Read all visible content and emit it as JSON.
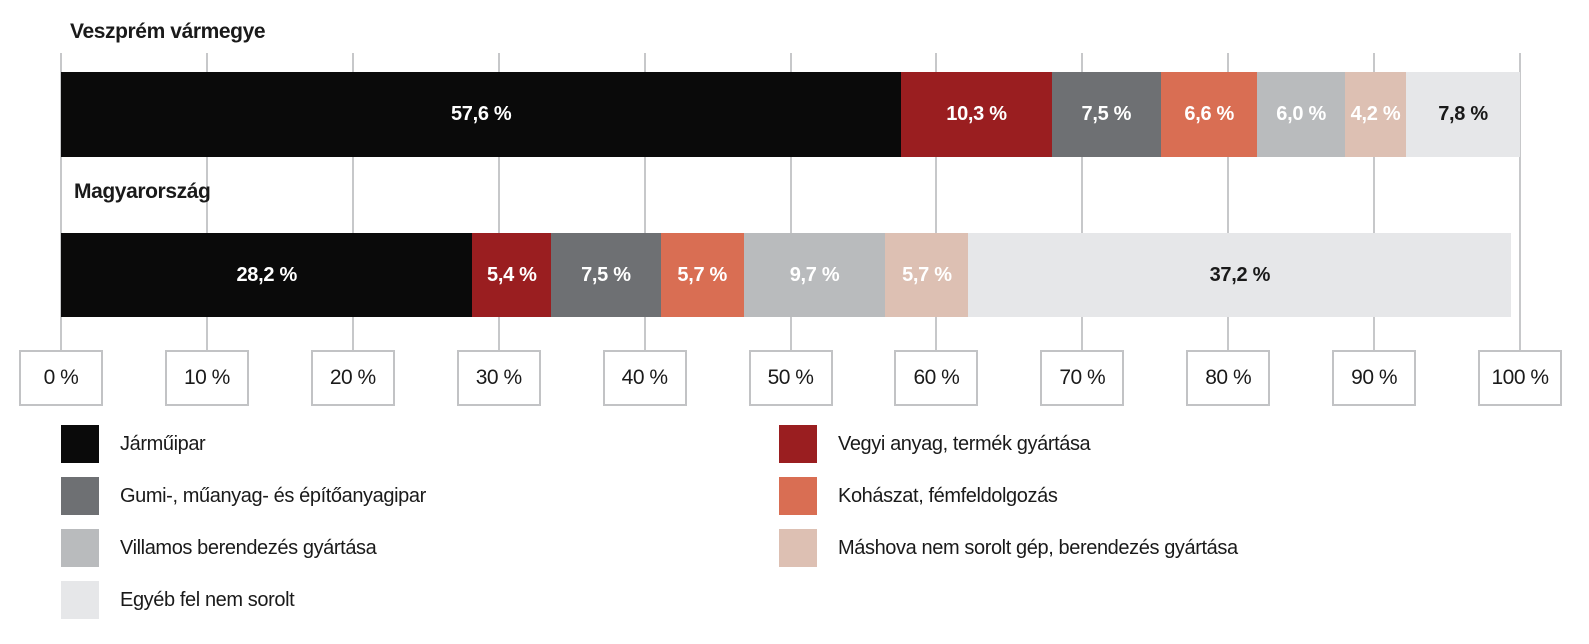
{
  "title": "Veszprém vármegye",
  "chart_data": {
    "type": "bar",
    "variant": "horizontal-stacked-percent",
    "title": "Veszprém vármegye",
    "xlabel": "",
    "ylabel": "",
    "xlim": [
      0,
      100
    ],
    "grid": "vertical-gridlines-on",
    "x_tick_labels": [
      "0 %",
      "10 %",
      "20 %",
      "30 %",
      "40 %",
      "50 %",
      "60 %",
      "70 %",
      "80 %",
      "90 %",
      "100 %"
    ],
    "series": [
      {
        "name": "Járműipar",
        "color": "#0a0a0a",
        "label_color": "#ffffff"
      },
      {
        "name": "Vegyi anyag, termék gyártása",
        "color": "#9a1e20",
        "label_color": "#ffffff"
      },
      {
        "name": "Gumi-, műanyag- és építőanyagipar",
        "color": "#6e7073",
        "label_color": "#ffffff"
      },
      {
        "name": "Kohászat, fémfeldolgozás",
        "color": "#d96e53",
        "label_color": "#ffffff"
      },
      {
        "name": "Villamos berendezés gyártása",
        "color": "#b9bbbd",
        "label_color": "#ffffff"
      },
      {
        "name": "Máshova nem sorolt gép, berendezés gyártása",
        "color": "#ddc0b3",
        "label_color": "#ffffff"
      },
      {
        "name": "Egyéb fel nem sorolt",
        "color": "#e6e7e9",
        "label_color": "#1a1a1a"
      }
    ],
    "rows": [
      {
        "label": "Veszprém vármegye",
        "values": [
          57.6,
          10.3,
          7.5,
          6.6,
          6.0,
          4.2,
          7.8
        ],
        "display": [
          "57,6 %",
          "10,3 %",
          "7,5 %",
          "6,6 %",
          "6,0 %",
          "4,2 %",
          "7,8 %"
        ]
      },
      {
        "label": "Magyarország",
        "values": [
          28.2,
          5.4,
          7.5,
          5.7,
          9.7,
          5.7,
          37.2
        ],
        "display": [
          "28,2 %",
          "5,4 %",
          "7,5 %",
          "5,7 %",
          "9,7 %",
          "5,7 %",
          "37,2 %"
        ]
      }
    ],
    "legend_columns": {
      "left": [
        0,
        2,
        4,
        6
      ],
      "right": [
        1,
        3,
        5
      ]
    },
    "legend_position": "bottom-two-columns"
  },
  "style_colors": {
    "gridline": "#c7c8ca",
    "tick_box_border": "#c2c3c5",
    "text": "#1a1a1a"
  }
}
